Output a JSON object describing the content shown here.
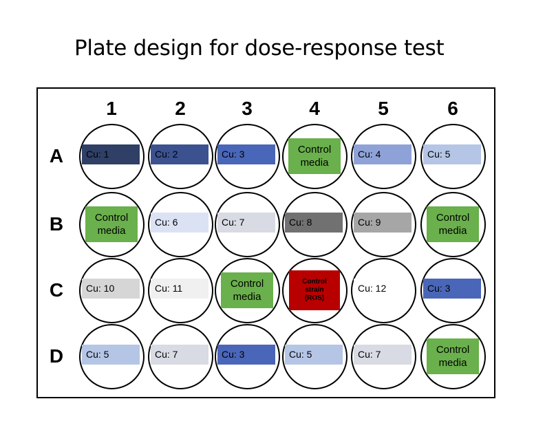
{
  "title": "Plate design for dose-response test",
  "columns": [
    "1",
    "2",
    "3",
    "4",
    "5",
    "6"
  ],
  "rows": [
    "A",
    "B",
    "C",
    "D"
  ],
  "colors": {
    "cu1": "#2f3f66",
    "cu2": "#3b5190",
    "cu3": "#4a66b8",
    "cu4": "#8fa2d8",
    "cu5": "#b5c5e6",
    "cu6": "#dbe2f3",
    "cu7": "#d8dbe3",
    "cu8": "#717171",
    "cu9": "#a6a6a6",
    "cu10": "#d6d6d6",
    "cu11": "#f0f0f0",
    "cu12": "#ffffff",
    "control_media": "#6ab04c",
    "control_strain": "#b80000"
  },
  "wells": [
    {
      "row": "A",
      "col": "1",
      "text": "Cu: 1",
      "kind": "cu",
      "color": "#2f3f66"
    },
    {
      "row": "A",
      "col": "2",
      "text": "Cu: 2",
      "kind": "cu",
      "color": "#3b5190"
    },
    {
      "row": "A",
      "col": "3",
      "text": "Cu: 3",
      "kind": "cu",
      "color": "#4a66b8"
    },
    {
      "row": "A",
      "col": "4",
      "text": "Control\nmedia",
      "kind": "ctrl",
      "color": "#6ab04c"
    },
    {
      "row": "A",
      "col": "5",
      "text": "Cu: 4",
      "kind": "cu",
      "color": "#8fa2d8"
    },
    {
      "row": "A",
      "col": "6",
      "text": "Cu: 5",
      "kind": "cu",
      "color": "#b5c5e6"
    },
    {
      "row": "B",
      "col": "1",
      "text": "Control\nmedia",
      "kind": "ctrl",
      "color": "#6ab04c"
    },
    {
      "row": "B",
      "col": "2",
      "text": "Cu: 6",
      "kind": "cu",
      "color": "#dbe2f3"
    },
    {
      "row": "B",
      "col": "3",
      "text": "Cu: 7",
      "kind": "cu",
      "color": "#d8dbe3"
    },
    {
      "row": "B",
      "col": "4",
      "text": "Cu: 8",
      "kind": "cu",
      "color": "#717171"
    },
    {
      "row": "B",
      "col": "5",
      "text": "Cu: 9",
      "kind": "cu",
      "color": "#a6a6a6"
    },
    {
      "row": "B",
      "col": "6",
      "text": "Control\nmedia",
      "kind": "ctrl",
      "color": "#6ab04c"
    },
    {
      "row": "C",
      "col": "1",
      "text": "Cu: 10",
      "kind": "cu",
      "color": "#d6d6d6"
    },
    {
      "row": "C",
      "col": "2",
      "text": "Cu: 11",
      "kind": "cu",
      "color": "#f0f0f0"
    },
    {
      "row": "C",
      "col": "3",
      "text": "Control\nmedia",
      "kind": "ctrl",
      "color": "#6ab04c"
    },
    {
      "row": "C",
      "col": "4",
      "text": "Control\nstrain\n(ROS)",
      "kind": "strain",
      "color": "#b80000"
    },
    {
      "row": "C",
      "col": "5",
      "text": "Cu: 12",
      "kind": "cu",
      "color": "#ffffff"
    },
    {
      "row": "C",
      "col": "6",
      "text": "Cu: 3",
      "kind": "cu",
      "color": "#4a66b8"
    },
    {
      "row": "D",
      "col": "1",
      "text": "Cu: 5",
      "kind": "cu",
      "color": "#b5c5e6"
    },
    {
      "row": "D",
      "col": "2",
      "text": "Cu: 7",
      "kind": "cu",
      "color": "#d8dbe3"
    },
    {
      "row": "D",
      "col": "3",
      "text": "Cu: 3",
      "kind": "cu",
      "color": "#4a66b8"
    },
    {
      "row": "D",
      "col": "4",
      "text": "Cu: 5",
      "kind": "cu",
      "color": "#b5c5e6"
    },
    {
      "row": "D",
      "col": "5",
      "text": "Cu: 7",
      "kind": "cu",
      "color": "#d8dbe3"
    },
    {
      "row": "D",
      "col": "6",
      "text": "Control\nmedia",
      "kind": "ctrl",
      "color": "#6ab04c"
    }
  ]
}
